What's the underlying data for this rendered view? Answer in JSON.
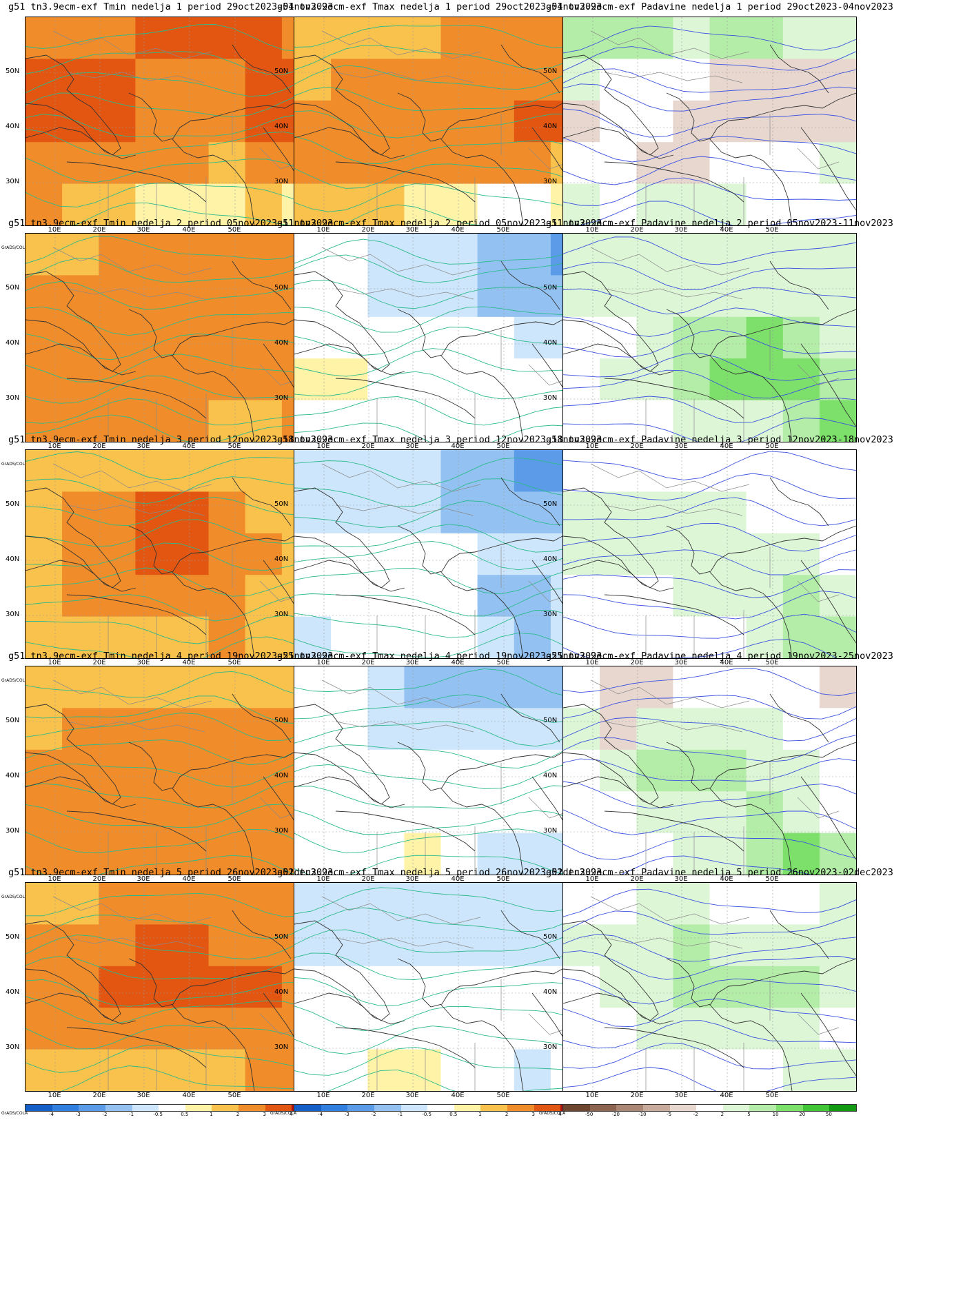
{
  "credit": "GrADS/COLA",
  "lat_ticks": [
    "50N",
    "40N",
    "30N"
  ],
  "lon_ticks": [
    "10E",
    "20E",
    "30E",
    "40E",
    "50E"
  ],
  "temp_scale": {
    "labels": [
      "-4",
      "-3",
      "-2",
      "-1",
      "-0.5",
      "0.5",
      "1",
      "2",
      "3",
      "4"
    ],
    "colors": [
      "#1560c8",
      "#2f7ee0",
      "#5b9be8",
      "#93c2f2",
      "#cde6fb",
      "#ffffff",
      "#fff3a8",
      "#f9c24d",
      "#f08d2a",
      "#e25612",
      "#b01010"
    ]
  },
  "precip_scale": {
    "labels": [
      "-50",
      "-20",
      "-10",
      "-5",
      "-2",
      "2",
      "5",
      "10",
      "20",
      "50"
    ],
    "colors": [
      "#6e4630",
      "#8c6450",
      "#aa8674",
      "#c9ab9c",
      "#e8d7cf",
      "#ffffff",
      "#dcf6d6",
      "#b4eda8",
      "#7ce06a",
      "#3fc535",
      "#139a13"
    ]
  },
  "panels": [
    {
      "title": "g51 tn3.9ecm-exf Tmin nedelja 1 period 29oct2023-04nov2023",
      "var": "tmin",
      "levels": [
        3,
        3,
        3,
        4,
        4,
        4,
        4,
        3,
        4,
        4,
        4,
        3,
        3,
        3,
        4,
        4,
        4,
        4,
        4,
        3,
        3,
        3,
        4,
        4,
        3,
        3,
        3,
        3,
        3,
        2,
        3,
        3,
        3,
        2,
        2,
        1,
        1,
        1,
        2,
        1,
        0
      ]
    },
    {
      "title": "g51 tn3.9ecm-exf Tmax nedelja 1 period 29oct2023-04nov2023",
      "var": "tmax",
      "levels": [
        2,
        2,
        2,
        2,
        3,
        3,
        3,
        3,
        2,
        3,
        3,
        3,
        3,
        3,
        3,
        3,
        3,
        3,
        3,
        3,
        3,
        3,
        4,
        4,
        3,
        3,
        3,
        3,
        3,
        3,
        3,
        2,
        2,
        2,
        2,
        1,
        1,
        0,
        0,
        1,
        1
      ]
    },
    {
      "title": "g51 tn3.9ecm-exf Padavine nedelja 1 period 29oct2023-04nov2023",
      "var": "precip",
      "levels": [
        2,
        2,
        2,
        1,
        2,
        2,
        1,
        1,
        1,
        0,
        0,
        0,
        -1,
        -1,
        -1,
        -1,
        -1,
        0,
        0,
        -1,
        -1,
        -1,
        -1,
        -1,
        0,
        0,
        -1,
        -1,
        0,
        0,
        0,
        1,
        1,
        0,
        1,
        1,
        1,
        0,
        0,
        0,
        0
      ]
    },
    {
      "title": "g51 tn3.9ecm-exf Tmin nedelja 2 period 05nov2023-11nov2023",
      "var": "tmin",
      "levels": [
        2,
        2,
        3,
        3,
        3,
        3,
        3,
        3,
        3,
        3,
        3,
        3,
        3,
        3,
        3,
        3,
        3,
        3,
        3,
        3,
        3,
        3,
        3,
        3,
        3,
        3,
        3,
        3,
        3,
        3,
        3,
        3,
        3,
        3,
        3,
        3,
        3,
        2,
        2,
        3,
        3
      ]
    },
    {
      "title": "g51 tn3.9ecm-exf Tmax nedelja 2 period 05nov2023-11nov2023",
      "var": "tmax",
      "levels": [
        0,
        0,
        -1,
        -1,
        -1,
        -2,
        -2,
        -3,
        0,
        0,
        -1,
        -1,
        -1,
        -2,
        -2,
        -2,
        0,
        0,
        0,
        0,
        0,
        0,
        -1,
        -1,
        1,
        1,
        0,
        0,
        0,
        0,
        0,
        0,
        0,
        0,
        0,
        0,
        0,
        0,
        0,
        0,
        0
      ]
    },
    {
      "title": "g51 tn3.9ecm-exf Padavine nedelja 2 period 05nov2023-11nov2023",
      "var": "precip",
      "levels": [
        1,
        1,
        1,
        1,
        1,
        1,
        1,
        1,
        1,
        1,
        1,
        1,
        1,
        1,
        1,
        1,
        0,
        0,
        1,
        2,
        2,
        3,
        2,
        1,
        0,
        1,
        1,
        2,
        3,
        3,
        3,
        2,
        0,
        0,
        0,
        1,
        1,
        1,
        2,
        3,
        2
      ]
    },
    {
      "title": "g51 tn3.9ecm-exf Tmin nedelja 3 period 12nov2023-18nov2023",
      "var": "tmin",
      "levels": [
        2,
        2,
        2,
        2,
        2,
        2,
        2,
        2,
        2,
        3,
        3,
        4,
        4,
        3,
        2,
        2,
        2,
        3,
        3,
        4,
        4,
        3,
        3,
        2,
        2,
        3,
        3,
        3,
        3,
        3,
        2,
        2,
        2,
        2,
        2,
        2,
        2,
        3,
        2,
        2,
        2
      ]
    },
    {
      "title": "g51 tn3.9ecm-exf Tmax nedelja 3 period 12nov2023-18nov2023",
      "var": "tmax",
      "levels": [
        -1,
        -1,
        -1,
        -1,
        -2,
        -2,
        -3,
        -3,
        -1,
        -1,
        -1,
        -1,
        -2,
        -2,
        -2,
        -2,
        0,
        0,
        0,
        0,
        0,
        -1,
        -1,
        -1,
        0,
        0,
        0,
        0,
        0,
        -2,
        -2,
        -1,
        -1,
        0,
        0,
        0,
        0,
        -1,
        -2,
        -1,
        0
      ]
    },
    {
      "title": "g51 tn3.9ecm-exf Padavine nedelja 3 period 12nov2023-18nov2023",
      "var": "precip",
      "levels": [
        0,
        0,
        0,
        0,
        0,
        0,
        0,
        0,
        1,
        1,
        1,
        1,
        1,
        0,
        0,
        0,
        1,
        1,
        1,
        1,
        1,
        1,
        1,
        0,
        0,
        0,
        0,
        1,
        1,
        1,
        2,
        1,
        0,
        0,
        0,
        0,
        0,
        1,
        2,
        2,
        1
      ]
    },
    {
      "title": "g51 tn3.9ecm-exf Tmin nedelja 4 period 19nov2023-25nov2023",
      "var": "tmin",
      "levels": [
        2,
        2,
        2,
        2,
        2,
        2,
        2,
        2,
        2,
        3,
        3,
        3,
        3,
        3,
        3,
        3,
        3,
        3,
        3,
        3,
        3,
        3,
        3,
        3,
        3,
        3,
        3,
        3,
        3,
        3,
        3,
        3,
        3,
        3,
        3,
        3,
        3,
        3,
        3,
        3,
        3
      ]
    },
    {
      "title": "g51 tn3.9ecm-exf Tmax nedelja 4 period 19nov2023-25nov2023",
      "var": "tmax",
      "levels": [
        0,
        0,
        -1,
        -2,
        -2,
        -2,
        -2,
        -2,
        0,
        0,
        -1,
        -1,
        -1,
        -1,
        -1,
        -1,
        0,
        0,
        0,
        0,
        0,
        0,
        0,
        0,
        0,
        0,
        0,
        0,
        0,
        0,
        0,
        0,
        0,
        0,
        0,
        1,
        0,
        -1,
        -1,
        -1,
        0
      ]
    },
    {
      "title": "g51 tn3.9ecm-exf Padavine nedelja 4 period 19nov2023-25nov2023",
      "var": "precip",
      "levels": [
        0,
        -1,
        -1,
        0,
        0,
        0,
        0,
        -1,
        1,
        -1,
        1,
        1,
        1,
        1,
        0,
        0,
        0,
        1,
        2,
        2,
        2,
        1,
        1,
        0,
        0,
        0,
        1,
        1,
        1,
        2,
        1,
        0,
        0,
        0,
        0,
        1,
        1,
        2,
        3,
        2,
        0
      ]
    },
    {
      "title": "g51 tn3.9ecm-exf Tmin nedelja 5 period 26nov2023-02dec2023",
      "var": "tmin",
      "levels": [
        2,
        2,
        3,
        3,
        3,
        3,
        3,
        3,
        3,
        3,
        3,
        4,
        4,
        3,
        3,
        3,
        3,
        3,
        4,
        4,
        4,
        4,
        4,
        3,
        3,
        3,
        3,
        3,
        3,
        3,
        3,
        3,
        2,
        2,
        2,
        2,
        2,
        2,
        3,
        3,
        3
      ]
    },
    {
      "title": "g51 tn3.9ecm-exf Tmax nedelja 5 period 26nov2023-02dec2023",
      "var": "tmax",
      "levels": [
        -1,
        -1,
        -1,
        -1,
        -1,
        -1,
        -1,
        -1,
        -1,
        -1,
        -1,
        -1,
        -1,
        -1,
        -1,
        -1,
        0,
        0,
        0,
        0,
        0,
        0,
        0,
        0,
        0,
        0,
        0,
        0,
        0,
        0,
        0,
        0,
        0,
        0,
        1,
        1,
        0,
        0,
        -1,
        0,
        0
      ]
    },
    {
      "title": "g51 tn3.9ecm-exf Padavine nedelja 5 period 26nov2023-02dec2023",
      "var": "precip",
      "levels": [
        0,
        0,
        1,
        1,
        0,
        0,
        0,
        1,
        1,
        1,
        1,
        2,
        1,
        1,
        1,
        1,
        0,
        1,
        1,
        2,
        2,
        2,
        2,
        1,
        0,
        0,
        1,
        1,
        1,
        1,
        1,
        0,
        0,
        0,
        0,
        0,
        0,
        0,
        1,
        1,
        0
      ]
    }
  ]
}
